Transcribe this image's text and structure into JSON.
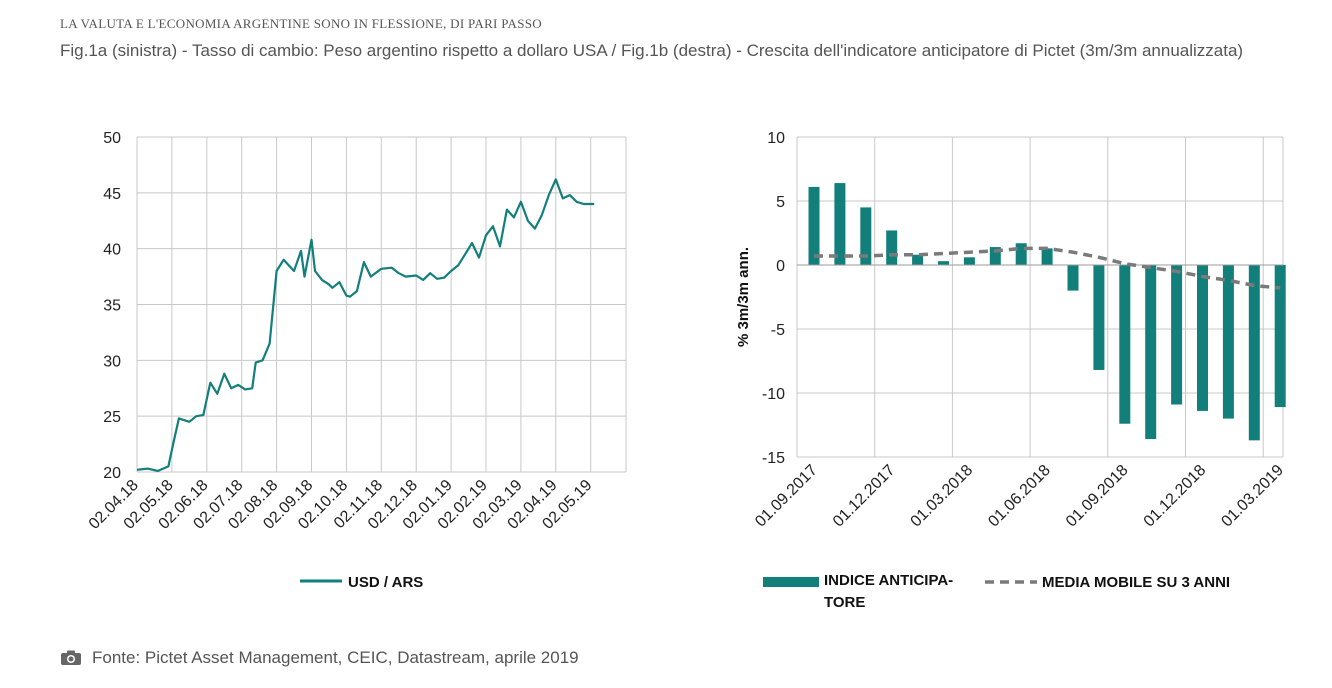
{
  "header": {
    "kicker": "LA VALUTA E L'ECONOMIA ARGENTINE SONO IN FLESSIONE, DI PARI PASSO",
    "subtitle": "Fig.1a (sinistra) - Tasso di cambio: Peso argentino rispetto a dollaro USA / Fig.1b (destra) - Crescita dell'indicatore anticipatore di Pictet (3m/3m annualizzata)"
  },
  "footer": {
    "source": "Fonte: Pictet Asset Management, CEIC, Datastream, aprile 2019",
    "icon": "camera-icon"
  },
  "colors": {
    "teal": "#127f7b",
    "grey_dash": "#7a7a7a",
    "grid": "#c8c8c8"
  },
  "chart_data": [
    {
      "type": "line",
      "ylim": [
        20,
        50
      ],
      "yticks": [
        20,
        25,
        30,
        35,
        40,
        45,
        50
      ],
      "grid": true,
      "legend_position": "bottom",
      "x_tick_labels": [
        "02.04.18",
        "02.05.18",
        "02.06.18",
        "02.07.18",
        "02.08.18",
        "02.09.18",
        "02.10.18",
        "02.11.18",
        "02.12.18",
        "02.01.19",
        "02.02.19",
        "02.03.19",
        "02.04.19",
        "02.05.19"
      ],
      "series": [
        {
          "name": "USD / ARS",
          "color": "#127f7b",
          "x": [
            0,
            0.3,
            0.6,
            0.9,
            1.0,
            1.2,
            1.5,
            1.7,
            1.9,
            2.1,
            2.3,
            2.5,
            2.7,
            2.9,
            3.1,
            3.3,
            3.4,
            3.6,
            3.8,
            4.0,
            4.2,
            4.5,
            4.7,
            4.8,
            5.0,
            5.1,
            5.3,
            5.5,
            5.6,
            5.8,
            6.0,
            6.1,
            6.3,
            6.5,
            6.7,
            7.0,
            7.3,
            7.5,
            7.7,
            8.0,
            8.2,
            8.4,
            8.6,
            8.8,
            9.0,
            9.2,
            9.4,
            9.6,
            9.8,
            10.0,
            10.2,
            10.4,
            10.6,
            10.8,
            11.0,
            11.2,
            11.4,
            11.6,
            11.8,
            12.0,
            12.2,
            12.4,
            12.6,
            12.8,
            12.9,
            13.0,
            13.1
          ],
          "values": [
            20.2,
            20.3,
            20.1,
            20.5,
            22.0,
            24.8,
            24.5,
            25.0,
            25.1,
            28.0,
            27.0,
            28.8,
            27.5,
            27.8,
            27.4,
            27.5,
            29.8,
            30.0,
            31.5,
            38.0,
            39.0,
            38.0,
            39.8,
            37.5,
            40.8,
            38.0,
            37.2,
            36.8,
            36.5,
            37.0,
            35.8,
            35.7,
            36.2,
            38.8,
            37.5,
            38.2,
            38.3,
            37.8,
            37.5,
            37.6,
            37.2,
            37.8,
            37.3,
            37.4,
            38.0,
            38.5,
            39.5,
            40.5,
            39.2,
            41.2,
            42.0,
            40.2,
            43.5,
            42.8,
            44.2,
            42.5,
            41.8,
            43.0,
            44.8,
            46.2,
            44.5,
            44.8,
            44.2,
            44.0,
            44.0,
            44.0,
            44.0
          ]
        }
      ]
    },
    {
      "type": "bar",
      "ylim": [
        -15,
        10
      ],
      "yticks": [
        -15,
        -10,
        -5,
        0,
        5,
        10
      ],
      "ylabel": "% 3m/3m ann.",
      "grid": true,
      "legend_position": "bottom",
      "x_tick_labels": [
        "01.09.2017",
        "01.12.2017",
        "01.03.2018",
        "01.06.2018",
        "01.09.2018",
        "01.12.2018",
        "01.03.2019"
      ],
      "categories": [
        "09.2017",
        "10.2017",
        "11.2017",
        "12.2017",
        "01.2018",
        "02.2018",
        "03.2018",
        "04.2018",
        "05.2018",
        "06.2018",
        "07.2018",
        "08.2018",
        "09.2018",
        "10.2018",
        "11.2018",
        "12.2018",
        "01.2019",
        "02.2019",
        "03.2019"
      ],
      "series": [
        {
          "name": "INDICE ANTICIPA-TORE",
          "kind": "bar",
          "color": "#127f7b",
          "values": [
            6.1,
            6.4,
            4.5,
            2.7,
            0.8,
            0.3,
            0.6,
            1.4,
            1.7,
            1.3,
            -2.0,
            -8.2,
            -12.4,
            -13.6,
            -10.9,
            -11.4,
            -12.0,
            -13.7,
            -11.1
          ]
        },
        {
          "name": "MEDIA MOBILE SU 3 ANNI",
          "kind": "line",
          "style": "dashed",
          "color": "#7a7a7a",
          "values": [
            0.7,
            0.7,
            0.7,
            0.8,
            0.8,
            0.9,
            1.0,
            1.1,
            1.3,
            1.3,
            1.0,
            0.6,
            0.1,
            -0.2,
            -0.5,
            -0.9,
            -1.2,
            -1.6,
            -1.8
          ]
        }
      ]
    }
  ]
}
